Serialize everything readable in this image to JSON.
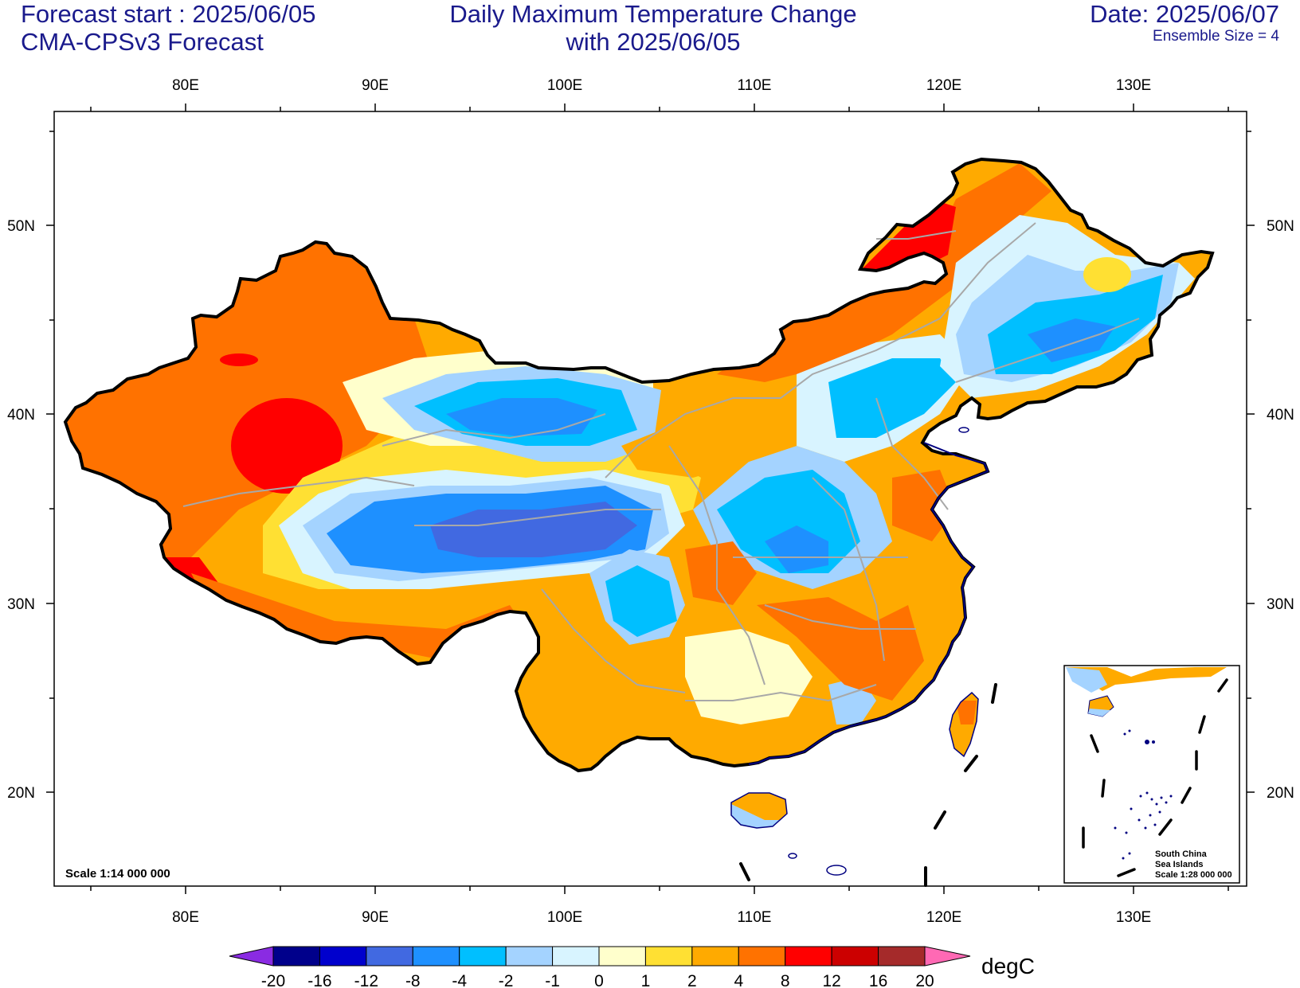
{
  "header": {
    "left_line1": "Forecast start : 2025/06/05",
    "left_line2": "CMA-CPSv3 Forecast",
    "center_line1": "Daily Maximum Temperature Change",
    "center_line2": "with 2025/06/05",
    "right_line1": "Date: 2025/06/07",
    "right_line2": "Ensemble Size = 4"
  },
  "map": {
    "lon_labels": [
      "80E",
      "90E",
      "100E",
      "110E",
      "120E",
      "130E"
    ],
    "lat_labels": [
      "50N",
      "40N",
      "30N",
      "20N"
    ],
    "lon_range": [
      73,
      136
    ],
    "lat_range": [
      15,
      56
    ],
    "scale_label": "Scale 1:14 000 000",
    "inset": {
      "line1": "South China",
      "line2": "Sea Islands",
      "line3": "Scale 1:28 000 000"
    }
  },
  "colorbar": {
    "unit": "degC",
    "labels": [
      "-20",
      "-16",
      "-12",
      "-8",
      "-4",
      "-2",
      "-1",
      "0",
      "1",
      "2",
      "4",
      "8",
      "12",
      "16",
      "20"
    ],
    "colors": [
      "#00008b",
      "#0000cd",
      "#4169e1",
      "#1e90ff",
      "#00bfff",
      "#a4d3ff",
      "#d8f4ff",
      "#ffffcc",
      "#ffe033",
      "#ffaa00",
      "#ff7200",
      "#ff0000",
      "#cc0000",
      "#a52a2a"
    ],
    "low_arrow_color": "#8a2be2",
    "high_arrow_color": "#ff69b4"
  },
  "legend_colors": {
    "coast": "#000080",
    "province": "#a8a8a8",
    "border": "#000000"
  }
}
